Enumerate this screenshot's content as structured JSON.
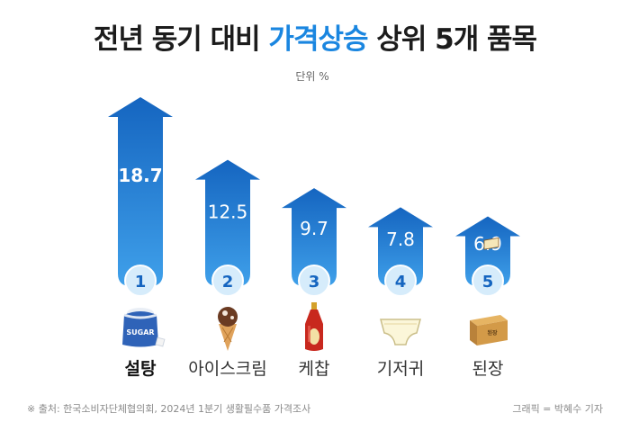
{
  "title": {
    "prefix": "전년 동기 대비 ",
    "highlight": "가격상승",
    "suffix": " 상위 5개 품목"
  },
  "unit_label": "단위 %",
  "footer": {
    "source": "※ 출처: 한국소비자단체협의회, 2024년 1분기 생활필수품 가격조사",
    "credit": "그래픽 = 박혜수 기자"
  },
  "colors": {
    "bar_top": "#1565c0",
    "bar_bottom": "#3fa0ea",
    "badge_fill": "#d6ecfb",
    "badge_text": "#1565c0",
    "title_highlight": "#1a86e0"
  },
  "chart_data": {
    "type": "bar",
    "title": "전년 동기 대비 가격상승 상위 5개 품목",
    "ylabel": "단위 %",
    "categories": [
      "설탕",
      "아이스크림",
      "케찹",
      "기저귀",
      "된장"
    ],
    "ranks": [
      "1",
      "2",
      "3",
      "4",
      "5"
    ],
    "values": [
      18.7,
      12.5,
      9.7,
      7.8,
      6.9
    ],
    "icons": [
      "sugar-bag-icon",
      "ice-cream-cone-icon",
      "ketchup-bottle-icon",
      "diaper-icon",
      "doenjang-box-icon"
    ],
    "icon_text": {
      "sugar": "SUGAR",
      "doenjang": "된장"
    },
    "value_labels": [
      "18.7",
      "12.5",
      "9.7",
      "7.8",
      "6.9"
    ],
    "highlight_category": "설탕",
    "grid": false,
    "legend": "none"
  }
}
